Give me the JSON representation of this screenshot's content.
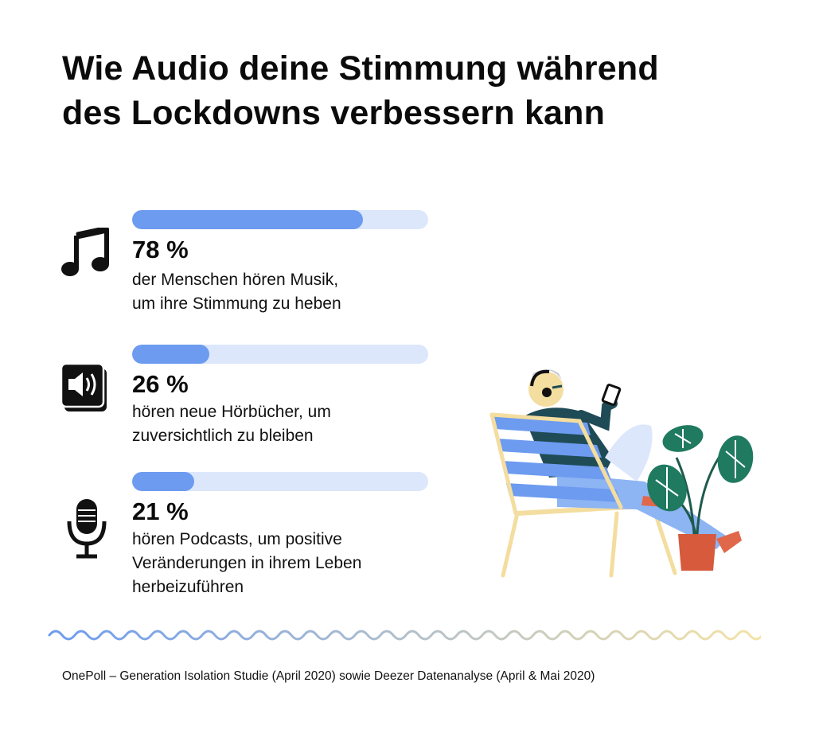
{
  "title": {
    "line1": "Wie Audio deine Stimmung während",
    "line2": "des Lockdowns verbessern kann"
  },
  "chart_data": {
    "type": "bar",
    "orientation": "horizontal",
    "unit": "%",
    "ylim": [
      0,
      100
    ],
    "items": [
      {
        "icon": "music-note-icon",
        "value": 78,
        "value_label": "78 %",
        "desc_lines": [
          "der Menschen hören Musik,",
          "um ihre Stimmung zu heben"
        ]
      },
      {
        "icon": "audiobook-speaker-icon",
        "value": 26,
        "value_label": "26 %",
        "desc_lines": [
          "hören neue Hörbücher, um",
          "zuversichtlich zu bleiben"
        ]
      },
      {
        "icon": "microphone-icon",
        "value": 21,
        "value_label": "21 %",
        "desc_lines": [
          "hören Podcasts, um positive",
          "Veränderungen in ihrem Leben",
          "herbeizuführen"
        ]
      }
    ]
  },
  "colors": {
    "bar_fill": "#6c9bf0",
    "bar_track": "#dce7fb",
    "wave_start": "#6c9bf0",
    "wave_end": "#f5e3a6"
  },
  "source": "OnePoll – Generation Isolation Studie (April 2020) sowie Deezer Datenanalyse (April & Mai 2020)"
}
